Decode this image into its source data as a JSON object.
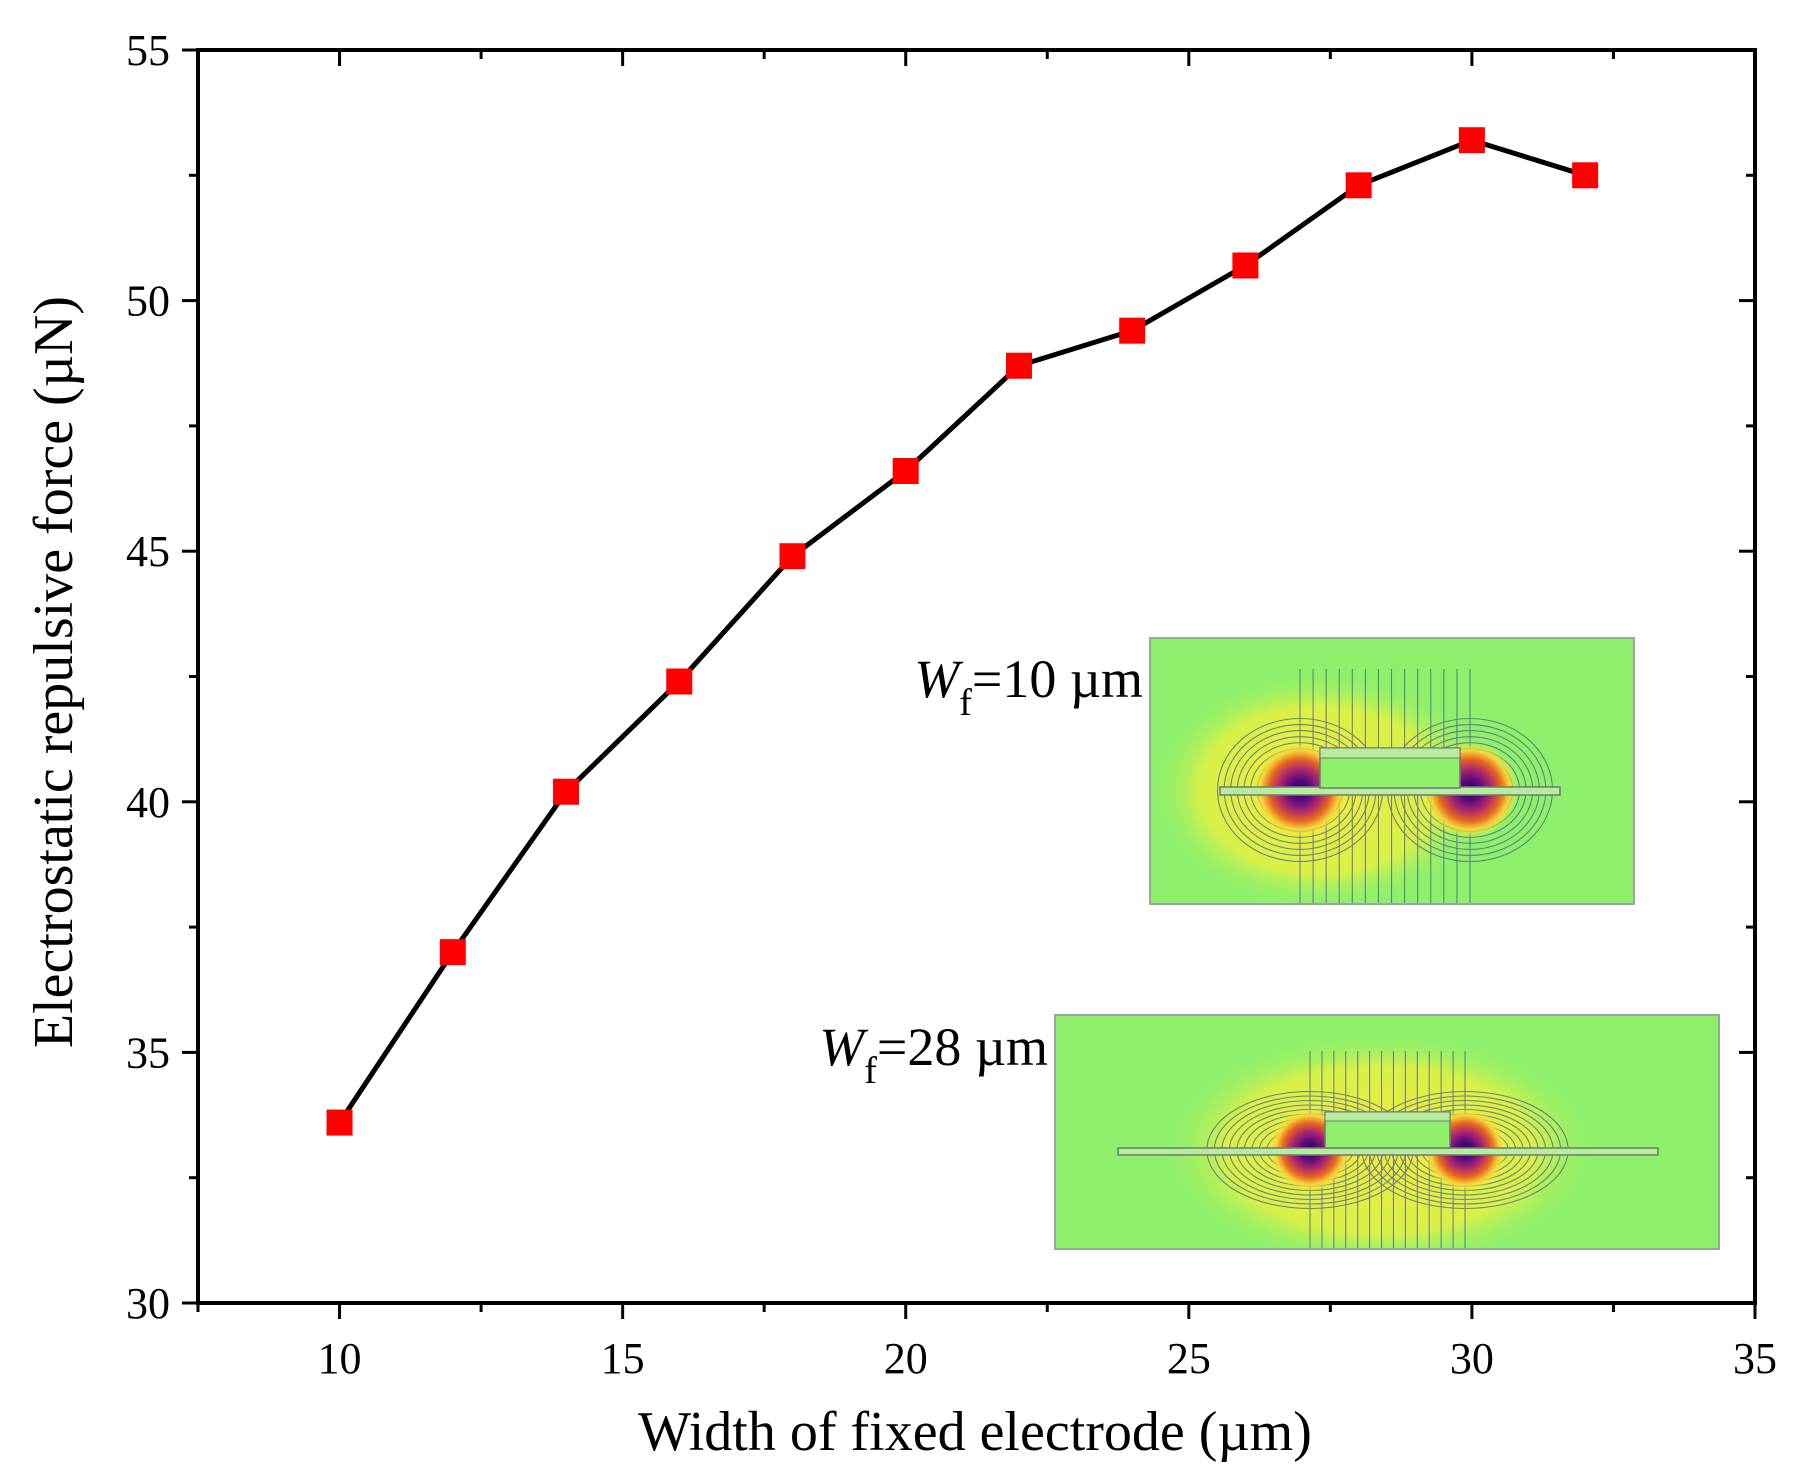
{
  "chart_data": {
    "type": "line",
    "title": "",
    "xlabel": "Width of fixed electrode (µm)",
    "ylabel": "Electrostatic repulsive force (µN)",
    "xlim": [
      7.5,
      35
    ],
    "ylim": [
      30,
      55
    ],
    "xticks": [
      10,
      15,
      20,
      25,
      30,
      35
    ],
    "yticks": [
      30,
      35,
      40,
      45,
      50,
      55
    ],
    "xtick_labels": [
      "10",
      "15",
      "20",
      "25",
      "30",
      "35"
    ],
    "ytick_labels": [
      "30",
      "35",
      "40",
      "45",
      "50",
      "55"
    ],
    "x_minor_step": 2.5,
    "y_minor_step": 2.5,
    "grid": false,
    "series": [
      {
        "name": "Electrostatic repulsive force",
        "x": [
          10,
          12,
          14,
          16,
          18,
          20,
          22,
          24,
          26,
          28,
          30,
          32
        ],
        "y": [
          33.6,
          37.0,
          40.2,
          42.4,
          44.9,
          46.6,
          48.7,
          49.4,
          50.7,
          52.3,
          53.2,
          52.5
        ],
        "line_color": "#000000",
        "marker": "square",
        "marker_color": "#ff0000"
      }
    ],
    "insets": [
      {
        "label_main": "W",
        "label_sub": "f",
        "label_rest": "=10 µm",
        "description": "electric field distribution, Wf = 10 µm"
      },
      {
        "label_main": "W",
        "label_sub": "f",
        "label_rest": "=28 µm",
        "description": "electric field distribution, Wf = 28 µm"
      }
    ],
    "colors": {
      "field_bg": "#8ef06a",
      "field_mid": "#f2ee3a",
      "field_hot": "#e0701a",
      "field_core": "#3a0060",
      "electrode": "#b8eaa0"
    }
  }
}
